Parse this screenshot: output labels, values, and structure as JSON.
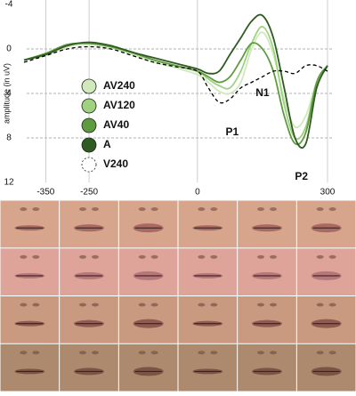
{
  "chart_data": {
    "type": "line",
    "y_label": "amplitude (in uV)",
    "x": [
      -400,
      -350,
      -300,
      -250,
      -200,
      -150,
      -100,
      -50,
      0,
      25,
      50,
      75,
      100,
      125,
      150,
      175,
      200,
      225,
      250,
      275,
      300
    ],
    "series": [
      {
        "name": "AV240",
        "color": "#cfe9bd",
        "values": [
          1,
          0.6,
          -0.2,
          -0.4,
          -0.1,
          0.5,
          1.2,
          1.7,
          2.3,
          3,
          3.8,
          4,
          3,
          0,
          -1.5,
          0.5,
          4.5,
          7,
          6,
          3,
          1.5
        ]
      },
      {
        "name": "AV120",
        "color": "#9fd27f",
        "values": [
          1,
          0.5,
          -0.3,
          -0.5,
          -0.2,
          0.4,
          1,
          1.5,
          2,
          2.7,
          3.3,
          3.5,
          2,
          -0.5,
          -2,
          0,
          5,
          8,
          7,
          3,
          1.5
        ]
      },
      {
        "name": "AV40",
        "color": "#5e9b3f",
        "values": [
          1,
          0.4,
          -0.4,
          -0.5,
          -0.2,
          0.3,
          1,
          1.5,
          2,
          2.5,
          3,
          2.5,
          1,
          -0.5,
          0,
          2,
          6,
          8.5,
          7.5,
          3,
          1.5
        ]
      },
      {
        "name": "A",
        "color": "#2f5a22",
        "values": [
          1,
          0.5,
          -0.3,
          -0.6,
          -0.3,
          0.3,
          0.8,
          1.3,
          1.8,
          2.2,
          2,
          0.5,
          -1,
          -2.5,
          -3,
          -1,
          3.5,
          8,
          8.5,
          3.5,
          1.5
        ]
      },
      {
        "name": "V240",
        "color": "#000000",
        "dashed": true,
        "values": [
          1.2,
          0.6,
          0,
          -0.2,
          0,
          0.6,
          1.2,
          1.6,
          2,
          3.5,
          4.8,
          4.5,
          3.5,
          3,
          2.5,
          2,
          2,
          2.2,
          1.5,
          1.5,
          2
        ]
      }
    ],
    "xlim": [
      -400,
      300
    ],
    "xticks": [
      -350,
      -250,
      0,
      300
    ],
    "ylim": [
      -4,
      12
    ],
    "yticks": [
      -4,
      0,
      4,
      8,
      12
    ],
    "y_inverted": true,
    "annotations": [
      {
        "text": "N1",
        "x": 150,
        "y": 4
      },
      {
        "text": "P1",
        "x": 80,
        "y": 7.5
      },
      {
        "text": "P2",
        "x": 240,
        "y": 11.5
      }
    ]
  }
}
